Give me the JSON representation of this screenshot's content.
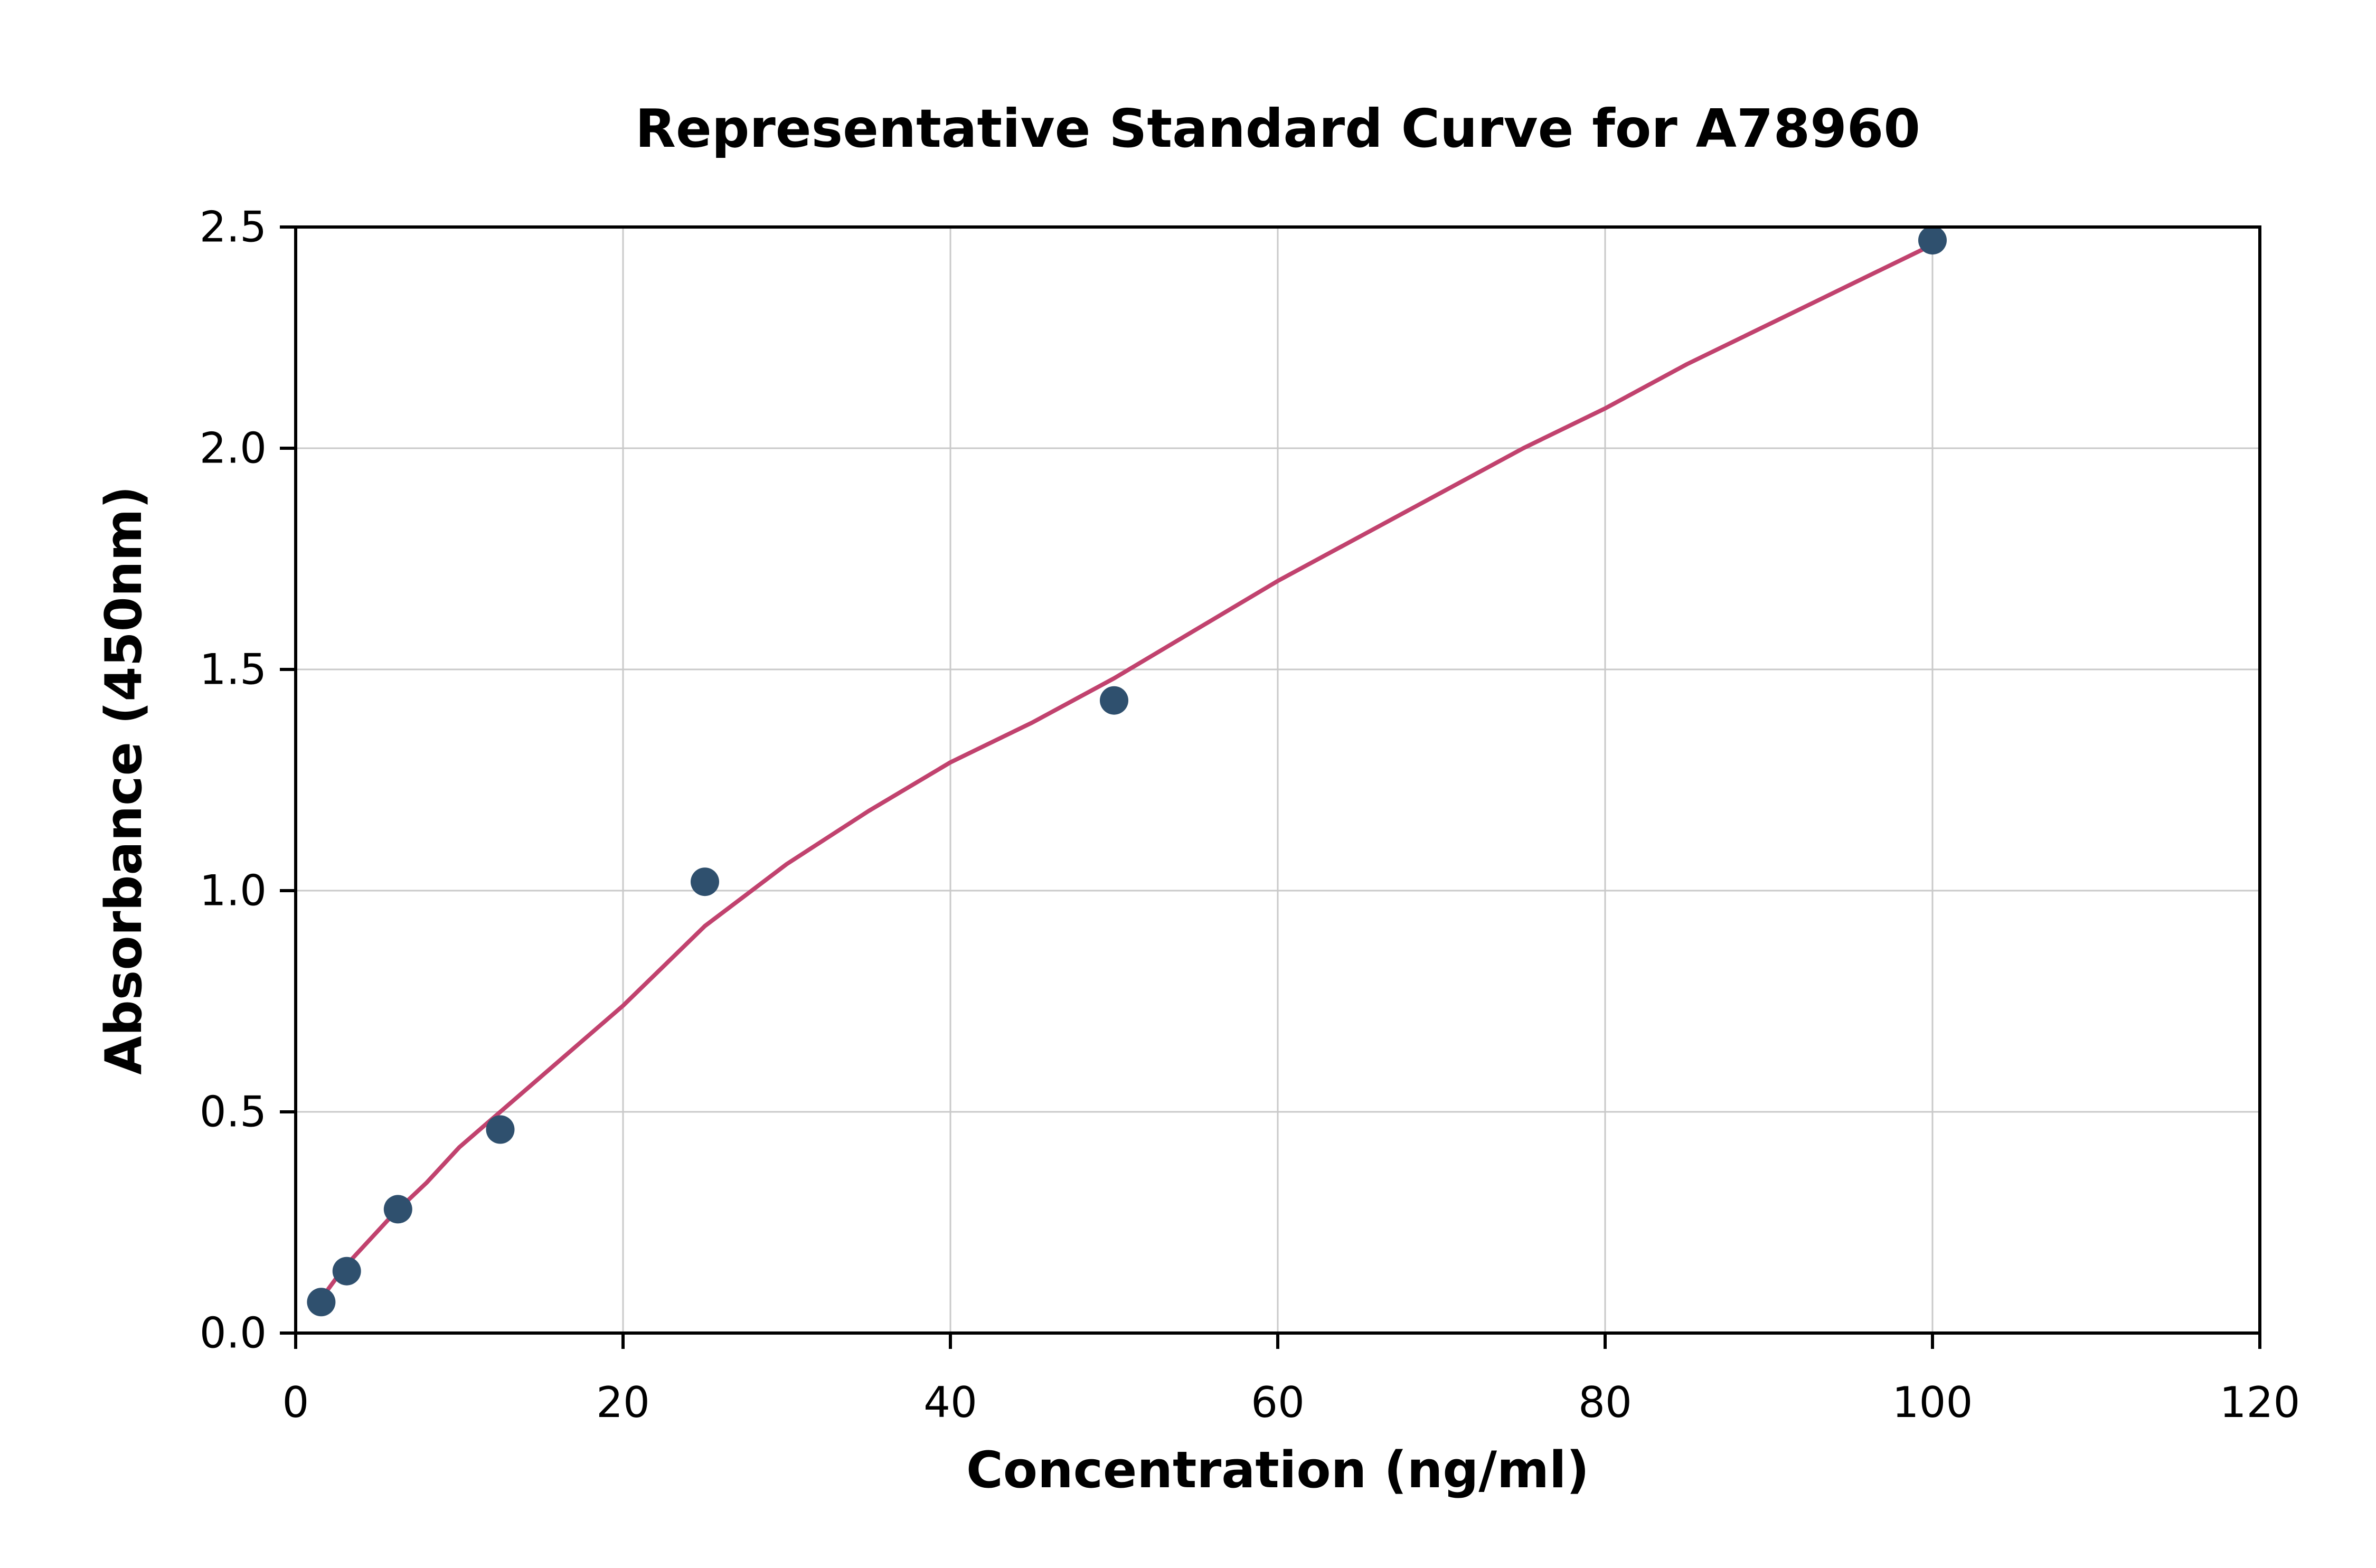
{
  "chart_data": {
    "type": "scatter",
    "title": "Representative Standard Curve for A78960",
    "xlabel": "Concentration (ng/ml)",
    "ylabel": "Absorbance (450nm)",
    "xlim": [
      0,
      120
    ],
    "ylim": [
      0,
      2.5
    ],
    "x_ticks": [
      "0",
      "20",
      "40",
      "60",
      "80",
      "100",
      "120"
    ],
    "x_tick_values": [
      0,
      20,
      40,
      60,
      80,
      100,
      120
    ],
    "y_ticks": [
      "0.0",
      "0.5",
      "1.0",
      "1.5",
      "2.0",
      "2.5"
    ],
    "y_tick_values": [
      0,
      0.5,
      1.0,
      1.5,
      2.0,
      2.5
    ],
    "grid": true,
    "legend": "none",
    "points": [
      [
        1.56,
        0.07
      ],
      [
        3.12,
        0.14
      ],
      [
        6.25,
        0.28
      ],
      [
        12.5,
        0.46
      ],
      [
        25,
        1.02
      ],
      [
        50,
        1.43
      ],
      [
        100,
        2.47
      ]
    ],
    "fit_curve": [
      [
        1.5,
        0.07
      ],
      [
        2,
        0.1
      ],
      [
        3,
        0.15
      ],
      [
        4,
        0.19
      ],
      [
        5,
        0.23
      ],
      [
        6,
        0.27
      ],
      [
        8,
        0.34
      ],
      [
        10,
        0.42
      ],
      [
        12.5,
        0.5
      ],
      [
        15,
        0.58
      ],
      [
        17.5,
        0.66
      ],
      [
        20,
        0.74
      ],
      [
        22.5,
        0.83
      ],
      [
        25,
        0.92
      ],
      [
        27.5,
        0.99
      ],
      [
        30,
        1.06
      ],
      [
        35,
        1.18
      ],
      [
        40,
        1.29
      ],
      [
        45,
        1.38
      ],
      [
        50,
        1.48
      ],
      [
        55,
        1.59
      ],
      [
        60,
        1.7
      ],
      [
        65,
        1.8
      ],
      [
        70,
        1.9
      ],
      [
        75,
        2.0
      ],
      [
        80,
        2.09
      ],
      [
        85,
        2.19
      ],
      [
        90,
        2.28
      ],
      [
        95,
        2.37
      ],
      [
        100,
        2.46
      ]
    ],
    "colors": {
      "point": "#2f506e",
      "line": "#c1426e",
      "grid": "#c9c9c9",
      "axis": "#000000",
      "text": "#000000",
      "background": "#ffffff"
    }
  }
}
